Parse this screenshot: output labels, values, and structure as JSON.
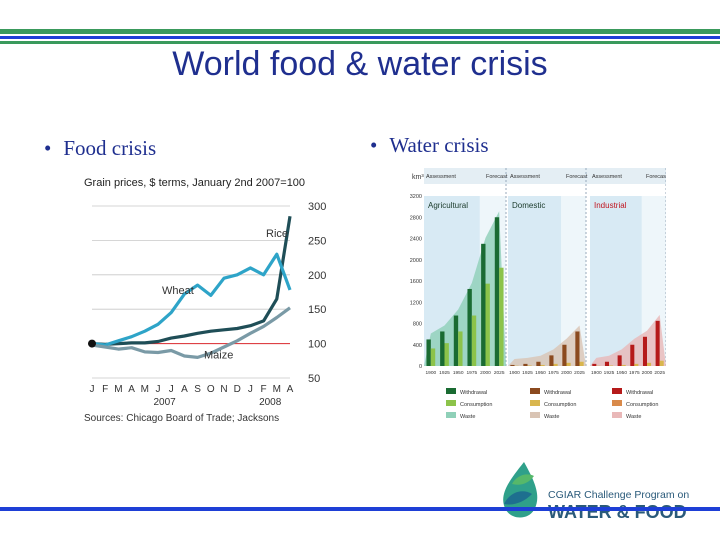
{
  "slide": {
    "title": "World food & water crisis",
    "bullet_left": "Food crisis",
    "bullet_right": "Water crisis",
    "bullet_char": "•"
  },
  "colors": {
    "title": "#1f2f8f",
    "green_stripe": "#3a9a5c",
    "blue_stripe": "#1e3fd6"
  },
  "logo": {
    "line1": "CGIAR Challenge Program on",
    "line2": "WATER & FOOD"
  },
  "chart_data": [
    {
      "type": "line",
      "title": "Grain prices, $ terms, January 2nd 2007=100",
      "months": [
        "J",
        "F",
        "M",
        "A",
        "M",
        "J",
        "J",
        "A",
        "S",
        "O",
        "N",
        "D",
        "J",
        "F",
        "M",
        "A"
      ],
      "year_labels": [
        "2007",
        "2008"
      ],
      "ylim": [
        50,
        300
      ],
      "yticks": [
        50,
        100,
        150,
        200,
        250,
        300
      ],
      "reference_line": 100,
      "series": [
        {
          "name": "Rice",
          "color": "#1f4e57",
          "values": [
            100,
            99,
            100,
            101,
            101,
            103,
            108,
            111,
            115,
            118,
            120,
            122,
            126,
            133,
            165,
            285
          ]
        },
        {
          "name": "Wheat",
          "color": "#2ea4c8",
          "values": [
            100,
            98,
            104,
            110,
            118,
            128,
            145,
            172,
            185,
            170,
            195,
            200,
            210,
            200,
            230,
            178
          ]
        },
        {
          "name": "Maize",
          "color": "#7a9aa6",
          "values": [
            98,
            95,
            92,
            94,
            88,
            87,
            90,
            82,
            80,
            86,
            95,
            104,
            115,
            125,
            138,
            152
          ]
        }
      ],
      "source": "Sources: Chicago Board of Trade; Jacksons"
    },
    {
      "type": "bar",
      "unit": "km³",
      "yticks": [
        0,
        400,
        800,
        1200,
        1600,
        2000,
        2400,
        2800,
        3200
      ],
      "ylim": [
        0,
        3200
      ],
      "years": [
        "1900",
        "1925",
        "1950",
        "1975",
        "2000",
        "2025"
      ],
      "periods": [
        "Assessment",
        "Forecast"
      ],
      "panels": [
        {
          "name": "Agricultural",
          "withdrawal": [
            500,
            650,
            950,
            1450,
            2300,
            2800
          ],
          "consumption": [
            330,
            430,
            650,
            950,
            1550,
            1850
          ],
          "color": "#1a6b32"
        },
        {
          "name": "Domestic",
          "withdrawal": [
            20,
            40,
            80,
            200,
            400,
            650
          ],
          "consumption": [
            5,
            10,
            20,
            40,
            60,
            80
          ],
          "color": "#8b4a1f"
        },
        {
          "name": "Industrial",
          "withdrawal": [
            40,
            80,
            200,
            400,
            550,
            850
          ],
          "consumption": [
            5,
            10,
            20,
            40,
            60,
            100
          ],
          "color": "#b51a1a"
        }
      ],
      "legend": {
        "Agricultural": [
          "Withdrawal",
          "Consumption",
          "Waste"
        ],
        "Domestic": [
          "Withdrawal",
          "Consumption",
          "Waste"
        ],
        "Industrial": [
          "Withdrawal",
          "Consumption",
          "Waste"
        ]
      }
    }
  ]
}
